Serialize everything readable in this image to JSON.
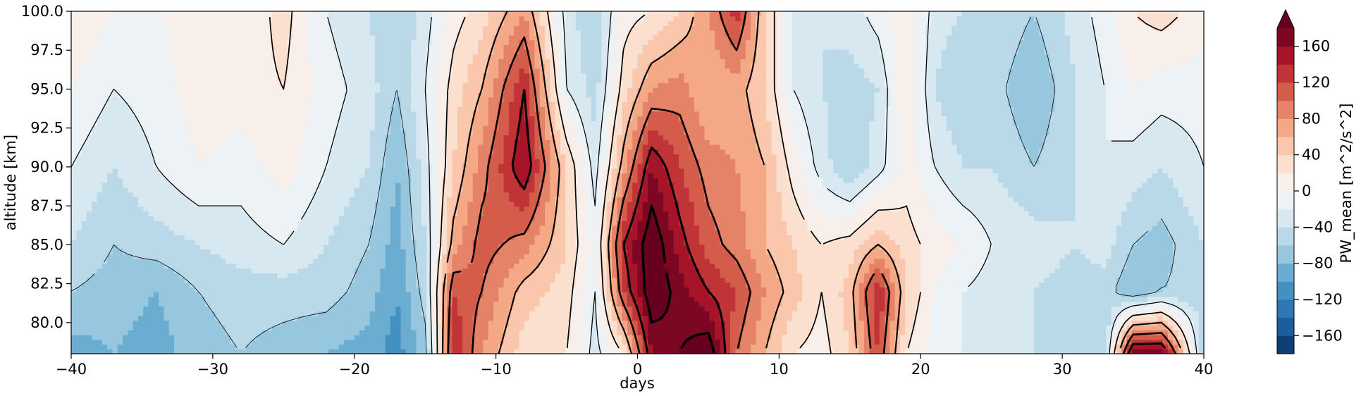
{
  "chart_data": {
    "type": "heatmap",
    "xlabel": "days",
    "ylabel": "altitude [km]",
    "xlim": [
      -40,
      40
    ],
    "ylim": [
      78,
      100
    ],
    "x_ticks": [
      -40,
      -30,
      -20,
      -10,
      0,
      10,
      20,
      30,
      40
    ],
    "y_ticks": [
      80.0,
      82.5,
      85.0,
      87.5,
      90.0,
      92.5,
      95.0,
      97.5,
      100.0
    ],
    "x_tick_labels": [
      "−40",
      "−30",
      "−20",
      "−10",
      "0",
      "10",
      "20",
      "30",
      "40"
    ],
    "y_tick_labels": [
      "80.0",
      "82.5",
      "85.0",
      "87.5",
      "90.0",
      "92.5",
      "95.0",
      "97.5",
      "100.0"
    ],
    "colorbar": {
      "label": "PW_mean [m^2/s^2]",
      "vmin": -180,
      "vmax": 180,
      "extend": "max",
      "colormap": "RdBu_r",
      "ticks": [
        -160,
        -120,
        -80,
        -40,
        0,
        40,
        80,
        120,
        160
      ],
      "tick_labels": [
        "−160",
        "−120",
        "−80",
        "−40",
        "0",
        "40",
        "80",
        "120",
        "160"
      ]
    },
    "field_columns_days": [
      -40,
      -37,
      -34,
      -31,
      -28,
      -25,
      -22,
      -19,
      -17,
      -15,
      -13,
      -11,
      -8,
      -5,
      -3,
      -1,
      1,
      3,
      5,
      7,
      9,
      11,
      13,
      15,
      17,
      19,
      21,
      23,
      25,
      28,
      31,
      33,
      35,
      37,
      40
    ],
    "field_rows_km": [
      100,
      95,
      90,
      85,
      82,
      78
    ],
    "field_values": [
      [
        20,
        0,
        -5,
        20,
        0,
        30,
        -20,
        -40,
        -60,
        -30,
        10,
        30,
        80,
        -30,
        -60,
        10,
        20,
        40,
        80,
        130,
        40,
        -20,
        -40,
        -30,
        -10,
        20,
        -30,
        -40,
        -40,
        -60,
        -30,
        -10,
        20,
        30,
        10
      ],
      [
        0,
        -20,
        -10,
        10,
        10,
        20,
        -10,
        -30,
        -60,
        -20,
        30,
        60,
        140,
        -20,
        -50,
        30,
        80,
        90,
        60,
        70,
        40,
        -20,
        -40,
        -50,
        -40,
        20,
        -40,
        -60,
        -50,
        -80,
        -40,
        -20,
        0,
        -10,
        -10
      ],
      [
        -20,
        -40,
        -20,
        0,
        -10,
        10,
        -20,
        -40,
        -80,
        -30,
        40,
        90,
        160,
        40,
        -30,
        70,
        160,
        120,
        90,
        80,
        60,
        10,
        -30,
        -60,
        -30,
        10,
        -20,
        -40,
        -40,
        -60,
        -40,
        -20,
        -30,
        -40,
        -20
      ],
      [
        -40,
        -60,
        -50,
        -40,
        -30,
        -20,
        -40,
        -60,
        -90,
        -40,
        70,
        110,
        90,
        40,
        -10,
        140,
        200,
        150,
        110,
        90,
        60,
        40,
        20,
        30,
        60,
        30,
        10,
        0,
        -20,
        -30,
        -40,
        -30,
        -60,
        -70,
        -40
      ],
      [
        -60,
        -70,
        -80,
        -60,
        -50,
        -50,
        -50,
        -70,
        -100,
        -50,
        120,
        100,
        50,
        30,
        -20,
        120,
        200,
        170,
        140,
        120,
        80,
        50,
        20,
        50,
        140,
        40,
        0,
        -20,
        -30,
        -40,
        -50,
        -50,
        -80,
        -60,
        -50
      ],
      [
        -90,
        -80,
        -90,
        -70,
        -60,
        -70,
        -80,
        -90,
        -110,
        -70,
        140,
        80,
        30,
        20,
        -30,
        20,
        160,
        180,
        200,
        100,
        60,
        20,
        10,
        40,
        120,
        20,
        -10,
        -20,
        -20,
        -40,
        -60,
        -60,
        180,
        180,
        -60
      ]
    ]
  }
}
